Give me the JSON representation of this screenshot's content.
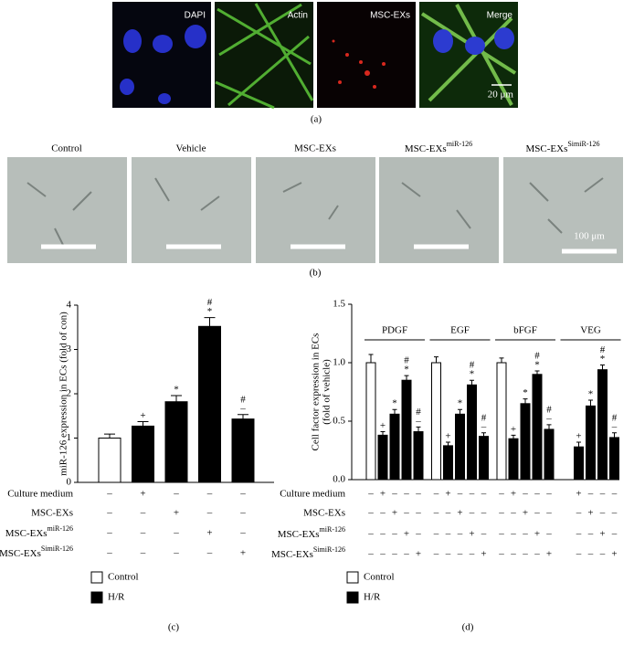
{
  "panels": {
    "a": {
      "labels": [
        "DAPI",
        "Actin",
        "MSC-EXs",
        "Merge"
      ],
      "scale": "20 μm",
      "caption": "(a)"
    },
    "b": {
      "labels": [
        "Control",
        "Vehicle",
        "MSC-EXs",
        {
          "base": "MSC-EXs",
          "sup": "miR-126"
        },
        {
          "base": "MSC-EXs",
          "sup": "SimiR-126"
        }
      ],
      "scale": "100 μm",
      "caption": "(b)"
    }
  },
  "chart_data": [
    {
      "type": "bar",
      "y_label": "miR-126 expression in ECs (fold of con)",
      "ylim": [
        0,
        4
      ],
      "yticks": [
        0,
        1,
        2,
        3,
        4
      ],
      "values": [
        1.0,
        1.27,
        1.82,
        3.52,
        1.43
      ],
      "errors": [
        0.09,
        0.1,
        0.14,
        0.2,
        0.1
      ],
      "colors": [
        "#ffffff",
        "#000000",
        "#000000",
        "#000000",
        "#000000"
      ],
      "annotations": [
        [],
        [
          "+"
        ],
        [
          "*"
        ],
        [
          "#",
          "*"
        ],
        [
          "#",
          "–"
        ]
      ],
      "conditions": [
        {
          "label": "Culture medium",
          "marks": [
            "–",
            "+",
            "–",
            "–",
            "–"
          ]
        },
        {
          "label": "MSC-EXs",
          "marks": [
            "–",
            "–",
            "+",
            "–",
            "–"
          ]
        },
        {
          "label": {
            "base": "MSC-EXs",
            "sup": "miR-126"
          },
          "marks": [
            "–",
            "–",
            "–",
            "+",
            "–"
          ]
        },
        {
          "label": {
            "base": "MSC-EXs",
            "sup": "SimiR-126"
          },
          "marks": [
            "–",
            "–",
            "–",
            "–",
            "+"
          ]
        }
      ],
      "legend": [
        {
          "name": "Control",
          "color": "#ffffff"
        },
        {
          "name": "H/R",
          "color": "#000000"
        }
      ],
      "caption": "(c)"
    },
    {
      "type": "grouped_bar",
      "y_label": [
        "Cell factor expression in ECs",
        "(fold of vehicle)"
      ],
      "ylim": [
        0,
        1.5
      ],
      "yticks": [
        {
          "value": 0,
          "label": "0.0"
        },
        {
          "value": 0.5,
          "label": "0.5"
        },
        {
          "value": 1,
          "label": "1.0"
        },
        {
          "value": 1.5,
          "label": "1.5"
        }
      ],
      "colors": [
        "#ffffff",
        "#000000",
        "#000000",
        "#000000",
        "#000000"
      ],
      "groups": [
        {
          "name": "PDGF",
          "values": [
            1.0,
            0.38,
            0.56,
            0.85,
            0.41
          ],
          "errors": [
            0.07,
            0.03,
            0.04,
            0.04,
            0.04
          ],
          "annotations": [
            [],
            [
              "+"
            ],
            [
              "*"
            ],
            [
              "#",
              "*"
            ],
            [
              "#",
              "–"
            ]
          ]
        },
        {
          "name": "EGF",
          "values": [
            1.0,
            0.29,
            0.56,
            0.81,
            0.37
          ],
          "errors": [
            0.05,
            0.03,
            0.04,
            0.04,
            0.03
          ],
          "annotations": [
            [],
            [
              "+"
            ],
            [
              "*"
            ],
            [
              "#",
              "*"
            ],
            [
              "#",
              "–"
            ]
          ]
        },
        {
          "name": "bFGF",
          "values": [
            1.0,
            0.35,
            0.65,
            0.9,
            0.43
          ],
          "errors": [
            0.04,
            0.03,
            0.04,
            0.03,
            0.04
          ],
          "annotations": [
            [],
            [
              "+"
            ],
            [
              "*"
            ],
            [
              "#",
              "*"
            ],
            [
              "#",
              "–"
            ]
          ]
        },
        {
          "name": "VEG",
          "values": [
            null,
            0.28,
            0.63,
            0.94,
            0.36
          ],
          "errors": [
            null,
            0.04,
            0.05,
            0.04,
            0.04
          ],
          "annotations": [
            [],
            [
              "+"
            ],
            [
              "*"
            ],
            [
              "#",
              "*"
            ],
            [
              "#",
              "–"
            ]
          ]
        }
      ],
      "conditions": [
        {
          "label": "Culture medium",
          "marks": [
            "–",
            "+",
            "–",
            "–",
            "–",
            "–",
            "+",
            "–",
            "–",
            "–",
            "–",
            "+",
            "–",
            "–",
            "–",
            null,
            "+",
            "–",
            "–",
            "–"
          ]
        },
        {
          "label": "MSC-EXs",
          "marks": [
            "–",
            "–",
            "+",
            "–",
            "–",
            "–",
            "–",
            "+",
            "–",
            "–",
            "–",
            "–",
            "+",
            "–",
            "–",
            null,
            "–",
            "+",
            "–",
            "–"
          ]
        },
        {
          "label": {
            "base": "MSC-EXs",
            "sup": "miR-126"
          },
          "marks": [
            "–",
            "–",
            "–",
            "+",
            "–",
            "–",
            "–",
            "–",
            "+",
            "–",
            "–",
            "–",
            "–",
            "+",
            "–",
            null,
            "–",
            "–",
            "+",
            "–"
          ]
        },
        {
          "label": {
            "base": "MSC-EXs",
            "sup": "SimiR-126"
          },
          "marks": [
            "–",
            "–",
            "–",
            "–",
            "+",
            "–",
            "–",
            "–",
            "–",
            "+",
            "–",
            "–",
            "–",
            "–",
            "+",
            null,
            "–",
            "–",
            "–",
            "+"
          ]
        }
      ],
      "legend": [
        {
          "name": "Control",
          "color": "#ffffff"
        },
        {
          "name": "H/R",
          "color": "#000000"
        }
      ],
      "caption": "(d)"
    }
  ]
}
